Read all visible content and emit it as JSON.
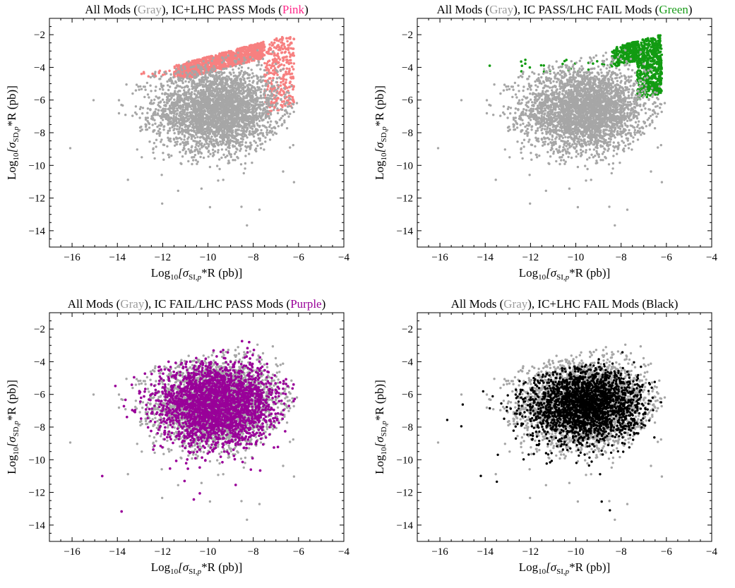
{
  "figure": {
    "colors": {
      "gray": "#a6a6a6",
      "pink": "#f78080",
      "green": "#129b12",
      "purple": "#990099",
      "black": "#000000",
      "pink_title": "#ff2a8a",
      "green_title": "#1a9c1a",
      "purple_title": "#990099",
      "gray_title": "#9c9c9c"
    }
  },
  "chart_data": [
    {
      "type": "scatter",
      "title_parts": [
        {
          "text": "All Mods ",
          "color": "#000000"
        },
        {
          "text": "(",
          "color": "#000000"
        },
        {
          "text": "Gray",
          "color": "#9c9c9c"
        },
        {
          "text": "), IC+LHC PASS Mods ",
          "color": "#000000"
        },
        {
          "text": "(",
          "color": "#000000"
        },
        {
          "text": "Pink",
          "color": "#ff2a8a"
        },
        {
          "text": ")",
          "color": "#000000"
        }
      ],
      "xlabel": "Log10[σSI,p*R (pb)]",
      "ylabel": "Log10[σSD,p*R (pb)]",
      "xlim": [
        -17,
        -4
      ],
      "ylim": [
        -15,
        -1
      ],
      "xticks": [
        -16,
        -14,
        -12,
        -10,
        -8,
        -6,
        -4
      ],
      "yticks": [
        -14,
        -12,
        -10,
        -8,
        -6,
        -4,
        -2
      ],
      "highlight": "pink",
      "series": [
        {
          "name": "Gray"
        },
        {
          "name": "Pink"
        }
      ]
    },
    {
      "type": "scatter",
      "title_parts": [
        {
          "text": "All Mods ",
          "color": "#000000"
        },
        {
          "text": "(",
          "color": "#000000"
        },
        {
          "text": "Gray",
          "color": "#9c9c9c"
        },
        {
          "text": "), IC PASS/LHC FAIL Mods ",
          "color": "#000000"
        },
        {
          "text": "(",
          "color": "#000000"
        },
        {
          "text": "Green",
          "color": "#1a9c1a"
        },
        {
          "text": ")",
          "color": "#000000"
        }
      ],
      "xlabel": "Log10[σSI,p*R (pb)]",
      "ylabel": "Log10[σSD,p*R (pb)]",
      "xlim": [
        -17,
        -4
      ],
      "ylim": [
        -15,
        -1
      ],
      "xticks": [
        -16,
        -14,
        -12,
        -10,
        -8,
        -6,
        -4
      ],
      "yticks": [
        -14,
        -12,
        -10,
        -8,
        -6,
        -4,
        -2
      ],
      "highlight": "green",
      "series": [
        {
          "name": "Gray"
        },
        {
          "name": "Green"
        }
      ]
    },
    {
      "type": "scatter",
      "title_parts": [
        {
          "text": "All Mods ",
          "color": "#000000"
        },
        {
          "text": "(",
          "color": "#000000"
        },
        {
          "text": "Gray",
          "color": "#9c9c9c"
        },
        {
          "text": "),  IC FAIL/LHC PASS Mods ",
          "color": "#000000"
        },
        {
          "text": "(",
          "color": "#000000"
        },
        {
          "text": "Purple",
          "color": "#990099"
        },
        {
          "text": ")",
          "color": "#000000"
        }
      ],
      "xlabel": "Log10[σSI,p*R (pb)]",
      "ylabel": "Log10[σSD,p*R (pb)]",
      "xlim": [
        -17,
        -4
      ],
      "ylim": [
        -15,
        -1
      ],
      "xticks": [
        -16,
        -14,
        -12,
        -10,
        -8,
        -6,
        -4
      ],
      "yticks": [
        -14,
        -12,
        -10,
        -8,
        -6,
        -4,
        -2
      ],
      "highlight": "purple",
      "series": [
        {
          "name": "Gray"
        },
        {
          "name": "Purple"
        }
      ]
    },
    {
      "type": "scatter",
      "title_parts": [
        {
          "text": "All Mods ",
          "color": "#000000"
        },
        {
          "text": "(",
          "color": "#000000"
        },
        {
          "text": "Gray",
          "color": "#9c9c9c"
        },
        {
          "text": "), IC+LHC FAIL Mods (Black)",
          "color": "#000000"
        }
      ],
      "xlabel": "Log10[σSI,p*R (pb)]",
      "ylabel": "Log10[σSD,p*R (pb)]",
      "xlim": [
        -17,
        -4
      ],
      "ylim": [
        -15,
        -1
      ],
      "xticks": [
        -16,
        -14,
        -12,
        -10,
        -8,
        -6,
        -4
      ],
      "yticks": [
        -14,
        -12,
        -10,
        -8,
        -6,
        -4,
        -2
      ],
      "highlight": "black",
      "series": [
        {
          "name": "Gray"
        },
        {
          "name": "Black"
        }
      ]
    }
  ]
}
